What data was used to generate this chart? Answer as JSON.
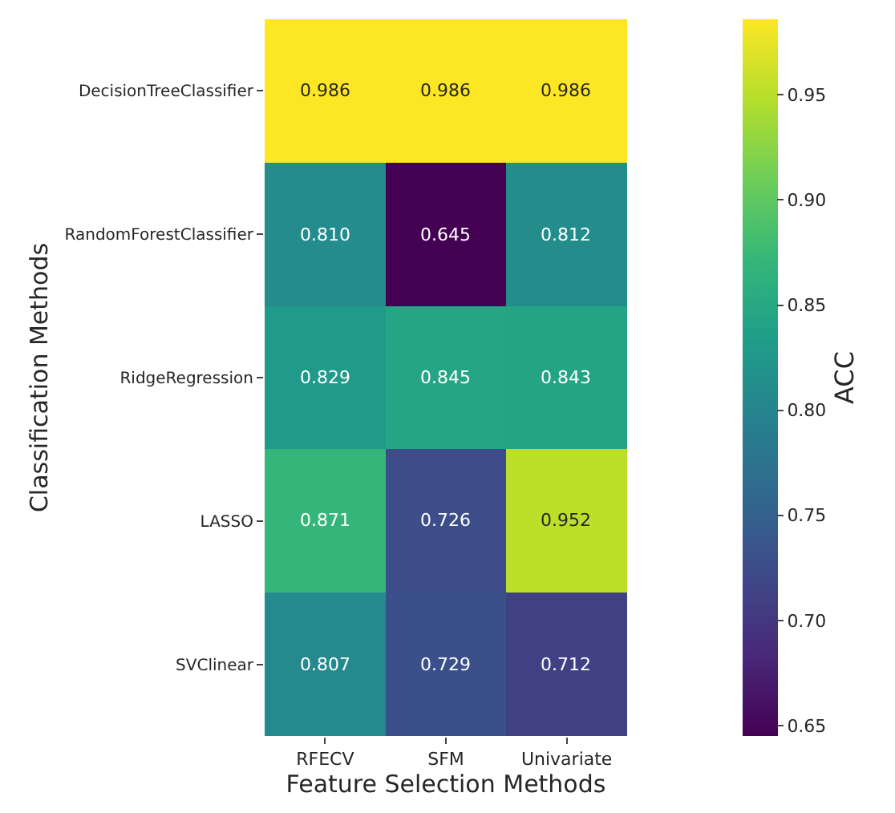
{
  "chart_data": {
    "type": "heatmap",
    "xlabel": "Feature Selection Methods",
    "ylabel": "Classification Methods",
    "clabel": "ACC",
    "categories": [
      "RFECV",
      "SFM",
      "Univariate"
    ],
    "y_categories": [
      "DecisionTreeClassifier",
      "RandomForestClassifier",
      "RidgeRegression",
      "LASSO",
      "SVClinear"
    ],
    "cells": [
      [
        0.986,
        0.986,
        0.986
      ],
      [
        0.81,
        0.645,
        0.812
      ],
      [
        0.829,
        0.845,
        0.843
      ],
      [
        0.871,
        0.726,
        0.952
      ],
      [
        0.807,
        0.729,
        0.712
      ]
    ],
    "cell_labels": [
      [
        "0.986",
        "0.986",
        "0.986"
      ],
      [
        "0.810",
        "0.645",
        "0.812"
      ],
      [
        "0.829",
        "0.845",
        "0.843"
      ],
      [
        "0.871",
        "0.726",
        "0.952"
      ],
      [
        "0.807",
        "0.729",
        "0.712"
      ]
    ],
    "clim": [
      0.645,
      0.986
    ],
    "cticks": [
      0.65,
      {
        "value": 0.7,
        "label": "0.70"
      },
      0.75,
      {
        "value": 0.8,
        "label": "0.80"
      },
      0.85,
      {
        "value": 0.9,
        "label": "0.90"
      },
      0.95
    ]
  }
}
